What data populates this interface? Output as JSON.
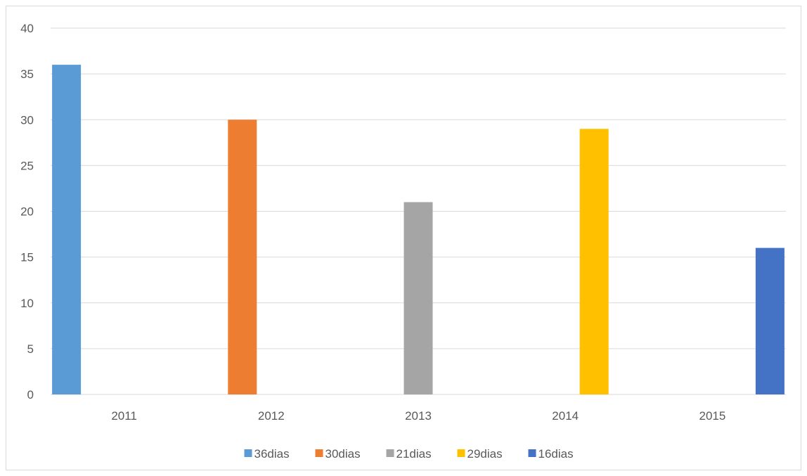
{
  "chart_data": {
    "type": "bar",
    "categories": [
      "2011",
      "2012",
      "2013",
      "2014",
      "2015"
    ],
    "series": [
      {
        "name": "36dias",
        "color": "#5b9bd5",
        "values": [
          36,
          null,
          null,
          null,
          null
        ]
      },
      {
        "name": "30dias",
        "color": "#ed7d31",
        "values": [
          null,
          30,
          null,
          null,
          null
        ]
      },
      {
        "name": "21dias",
        "color": "#a5a5a5",
        "values": [
          null,
          null,
          21,
          null,
          null
        ]
      },
      {
        "name": "29dias",
        "color": "#ffc000",
        "values": [
          null,
          null,
          null,
          29,
          null
        ]
      },
      {
        "name": "16dias",
        "color": "#4472c4",
        "values": [
          null,
          null,
          null,
          null,
          16
        ]
      }
    ],
    "yticks": [
      "0",
      "5",
      "10",
      "15",
      "20",
      "25",
      "30",
      "35",
      "40"
    ],
    "ylim": [
      0,
      40
    ],
    "grid": true,
    "legend_position": "bottom",
    "title": "",
    "xlabel": "",
    "ylabel": ""
  }
}
